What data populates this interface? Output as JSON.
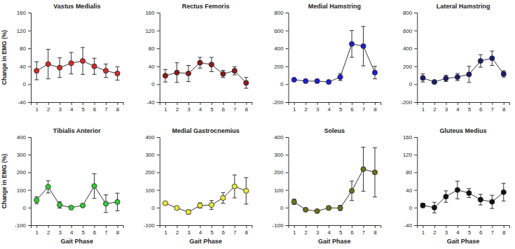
{
  "chart_data": [
    {
      "type": "line",
      "title": "Vastus Medialis",
      "ylabel": "Change in EMG (%)",
      "x": [
        1,
        2,
        3,
        4,
        5,
        6,
        7,
        8
      ],
      "values": [
        30,
        45,
        37,
        47,
        52,
        40,
        30,
        24
      ],
      "errors": [
        20,
        33,
        22,
        24,
        30,
        18,
        15,
        15
      ],
      "color": "#d42a2a",
      "marker": "circle",
      "xlim": [
        0.5,
        8.5
      ],
      "xticks": [
        1,
        2,
        3,
        4,
        5,
        6,
        7,
        8
      ],
      "ylim": [
        -40,
        160
      ],
      "yticks": [
        -40,
        0,
        40,
        80,
        120,
        160
      ],
      "grid": false
    },
    {
      "type": "line",
      "title": "Rectus Femoris",
      "x": [
        1,
        2,
        3,
        4,
        5,
        6,
        7,
        8
      ],
      "values": [
        19,
        26,
        24,
        48,
        44,
        23,
        30,
        3
      ],
      "errors": [
        14,
        22,
        18,
        12,
        16,
        8,
        9,
        12
      ],
      "color": "#8b1a1a",
      "marker": "circle",
      "xlim": [
        0.5,
        8.5
      ],
      "xticks": [
        1,
        2,
        3,
        4,
        5,
        6,
        7,
        8
      ],
      "ylim": [
        -40,
        160
      ],
      "yticks": [
        -40,
        0,
        40,
        80,
        120,
        160
      ],
      "grid": false
    },
    {
      "type": "line",
      "title": "Medial Hamstring",
      "x": [
        1,
        2,
        3,
        4,
        5,
        6,
        7,
        8
      ],
      "values": [
        50,
        35,
        35,
        25,
        80,
        450,
        425,
        130
      ],
      "errors": [
        15,
        10,
        10,
        10,
        40,
        150,
        220,
        70
      ],
      "color": "#1f1fd0",
      "marker": "circle",
      "xlim": [
        0.5,
        8.5
      ],
      "xticks": [
        1,
        2,
        3,
        4,
        5,
        6,
        7,
        8
      ],
      "ylim": [
        -200,
        800
      ],
      "yticks": [
        -200,
        0,
        200,
        400,
        600,
        800
      ],
      "grid": false
    },
    {
      "type": "line",
      "title": "Lateral Hamstring",
      "x": [
        1,
        2,
        3,
        4,
        5,
        6,
        7,
        8
      ],
      "values": [
        70,
        25,
        65,
        80,
        110,
        260,
        290,
        115
      ],
      "errors": [
        45,
        15,
        35,
        40,
        90,
        70,
        80,
        35
      ],
      "color": "#1c1c6e",
      "marker": "circle",
      "xlim": [
        0.5,
        8.5
      ],
      "xticks": [
        1,
        2,
        3,
        4,
        5,
        6,
        7,
        8
      ],
      "ylim": [
        -200,
        800
      ],
      "yticks": [
        -200,
        0,
        200,
        400,
        600,
        800
      ],
      "grid": false
    },
    {
      "type": "line",
      "title": "Tibialis Anterior",
      "xlabel": "Gait Phase",
      "ylabel": "Change in EMG (%)",
      "x": [
        1,
        2,
        3,
        4,
        5,
        6,
        7,
        8
      ],
      "values": [
        42,
        118,
        15,
        0,
        12,
        122,
        22,
        32
      ],
      "errors": [
        20,
        35,
        18,
        5,
        5,
        70,
        50,
        50
      ],
      "color": "#33cc33",
      "marker": "circle",
      "xlim": [
        0.5,
        8.5
      ],
      "xticks": [
        1,
        2,
        3,
        4,
        5,
        6,
        7,
        8
      ],
      "ylim": [
        -100,
        400
      ],
      "yticks": [
        -100,
        0,
        100,
        200,
        300,
        400
      ],
      "grid": false
    },
    {
      "type": "line",
      "title": "Medial Gastrocnemius",
      "xlabel": "Gait Phase",
      "x": [
        1,
        2,
        3,
        4,
        5,
        6,
        7,
        8
      ],
      "values": [
        25,
        -2,
        -25,
        12,
        15,
        55,
        120,
        95
      ],
      "errors": [
        8,
        8,
        12,
        15,
        25,
        30,
        65,
        75
      ],
      "color": "#e8e83a",
      "marker": "circle",
      "xlim": [
        0.5,
        8.5
      ],
      "xticks": [
        1,
        2,
        3,
        4,
        5,
        6,
        7,
        8
      ],
      "ylim": [
        -100,
        400
      ],
      "yticks": [
        -100,
        0,
        100,
        200,
        300,
        400
      ],
      "grid": false
    },
    {
      "type": "line",
      "title": "Soleus",
      "xlabel": "Gait Phase",
      "x": [
        1,
        2,
        3,
        4,
        5,
        6,
        7,
        8
      ],
      "values": [
        33,
        -12,
        -20,
        -2,
        -2,
        95,
        218,
        200
      ],
      "errors": [
        15,
        5,
        5,
        10,
        15,
        55,
        125,
        140
      ],
      "color": "#6e6e1e",
      "marker": "circle",
      "xlim": [
        0.5,
        8.5
      ],
      "xticks": [
        1,
        2,
        3,
        4,
        5,
        6,
        7,
        8
      ],
      "ylim": [
        -100,
        400
      ],
      "yticks": [
        -100,
        0,
        100,
        200,
        300,
        400
      ],
      "grid": false
    },
    {
      "type": "line",
      "title": "Gluteus Medius",
      "xlabel": "Gait Phase",
      "x": [
        1,
        2,
        3,
        4,
        5,
        6,
        7,
        8
      ],
      "values": [
        5,
        0,
        25,
        40,
        33,
        18,
        13,
        35
      ],
      "errors": [
        5,
        12,
        13,
        20,
        10,
        12,
        15,
        20
      ],
      "color": "#111111",
      "marker": "circle",
      "xlim": [
        0.5,
        8.5
      ],
      "xticks": [
        1,
        2,
        3,
        4,
        5,
        6,
        7,
        8
      ],
      "ylim": [
        -40,
        160
      ],
      "yticks": [
        -40,
        0,
        40,
        80,
        120,
        160
      ],
      "grid": false
    }
  ]
}
